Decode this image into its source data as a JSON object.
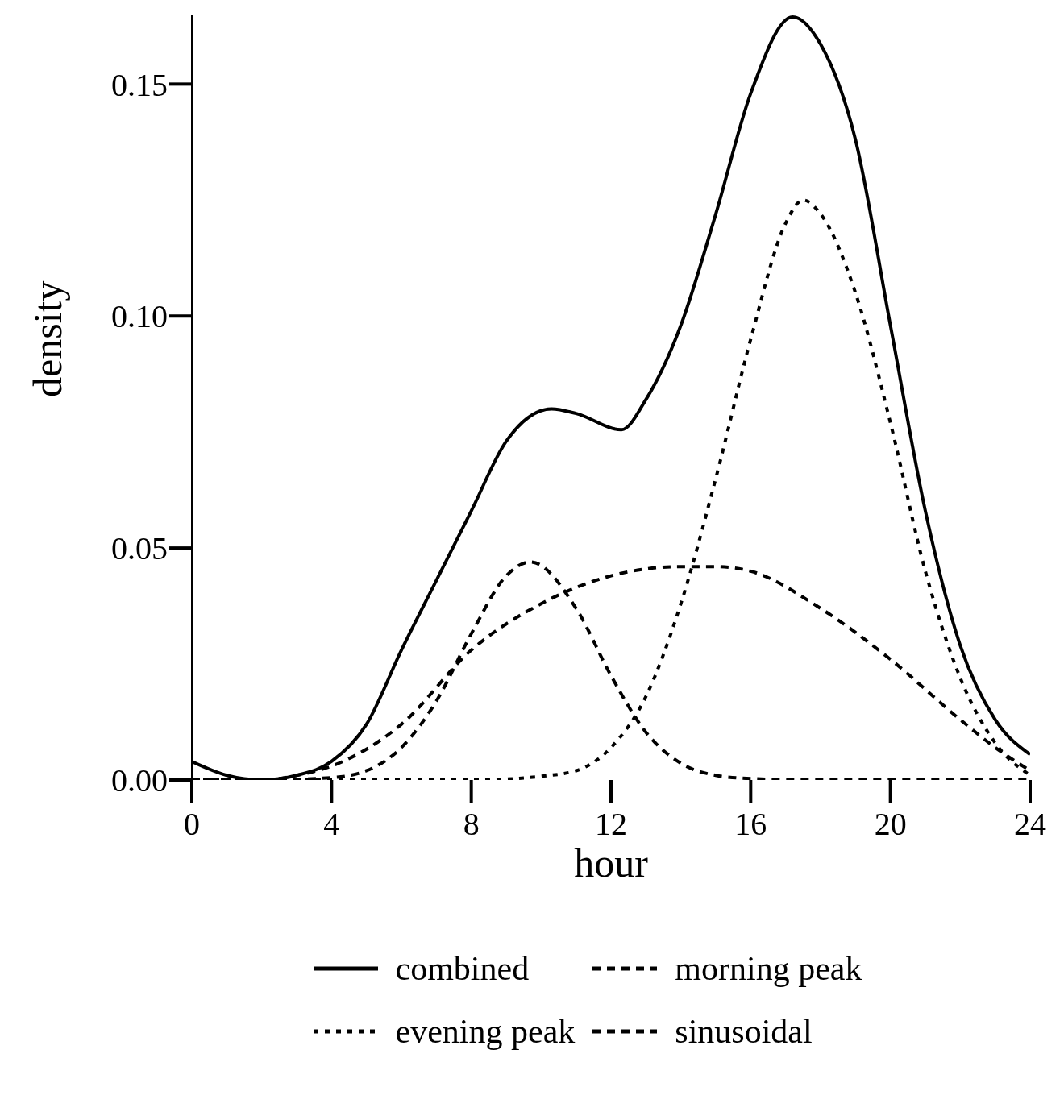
{
  "chart_data": {
    "type": "line",
    "xlabel": "hour",
    "ylabel": "density",
    "xlim": [
      0,
      24
    ],
    "xticks": [
      0,
      4,
      8,
      12,
      16,
      20,
      24
    ],
    "ylim": [
      0,
      0.165
    ],
    "yticks": [
      {
        "value": 0,
        "label": "0.00"
      },
      {
        "value": 0.05,
        "label": "0.05"
      },
      {
        "value": 0.1,
        "label": "0.10"
      },
      {
        "value": 0.15,
        "label": "0.15"
      }
    ],
    "grid": false,
    "legend": "bottom",
    "marker": "none",
    "series": [
      {
        "name": "combined",
        "color": "#000000",
        "line_style": "solid",
        "x": [
          0,
          1,
          2,
          3,
          4,
          5,
          6,
          7,
          8,
          9,
          10.3,
          11,
          12.3,
          13,
          14,
          15,
          16,
          17.2,
          18,
          19,
          20,
          21,
          22,
          23,
          24
        ],
        "values": [
          0.004,
          0.001,
          0,
          0.001,
          0.004,
          0.012,
          0.028,
          0.043,
          0.058,
          0.073,
          0.08,
          0.079,
          0.0755,
          0.082,
          0.098,
          0.122,
          0.148,
          0.1645,
          0.1586,
          0.138,
          0.098,
          0.058,
          0.029,
          0.013,
          0.0055
        ]
      },
      {
        "name": "morning peak",
        "color": "#000000",
        "line_style": "dashed",
        "x": [
          0,
          2,
          4,
          5,
          6,
          7,
          8,
          9,
          9.7,
          11,
          12,
          13,
          14,
          15,
          16,
          18,
          20,
          22,
          24
        ],
        "values": [
          0,
          0,
          0.0005,
          0.002,
          0.007,
          0.017,
          0.0315,
          0.044,
          0.047,
          0.037,
          0.0225,
          0.0103,
          0.0036,
          0.001,
          0.0003,
          0,
          0,
          0,
          0
        ]
      },
      {
        "name": "evening peak",
        "color": "#000000",
        "line_style": "dotted",
        "x": [
          0,
          2,
          4,
          6,
          8,
          9,
          10,
          11,
          12,
          13,
          14,
          15,
          16,
          17,
          17.5,
          18,
          19,
          20,
          21,
          22,
          23,
          24
        ],
        "values": [
          0,
          0,
          0,
          0,
          0,
          0.0002,
          0.0008,
          0.002,
          0.007,
          0.018,
          0.038,
          0.065,
          0.095,
          0.12,
          0.125,
          0.122,
          0.105,
          0.077,
          0.045,
          0.022,
          0.008,
          0.001
        ]
      },
      {
        "name": "sinusoidal",
        "color": "#000000",
        "line_style": "dashed",
        "x": [
          0,
          1,
          2,
          3,
          4,
          6,
          8,
          10,
          12,
          14,
          15,
          16,
          18,
          20,
          22,
          23,
          24
        ],
        "values": [
          0,
          0,
          0,
          0.001,
          0.003,
          0.012,
          0.028,
          0.038,
          0.044,
          0.046,
          0.046,
          0.045,
          0.037,
          0.026,
          0.013,
          0.007,
          0.002
        ]
      }
    ]
  }
}
